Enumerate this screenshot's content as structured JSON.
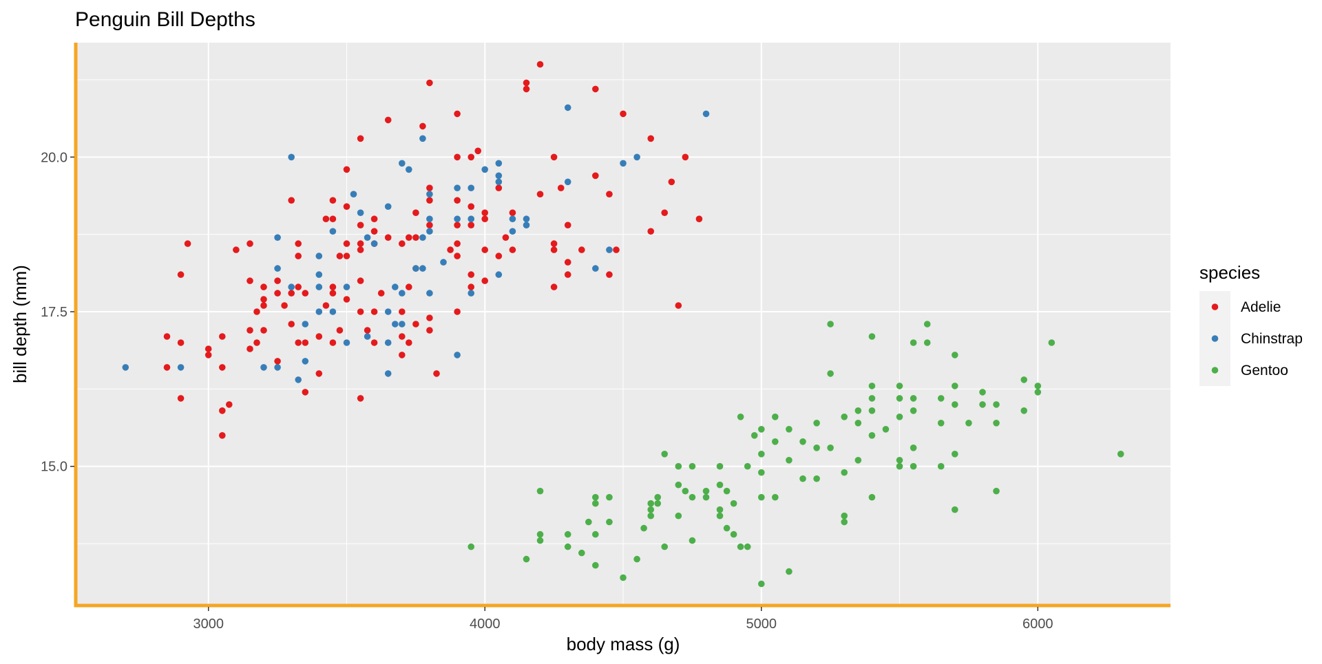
{
  "chart_data": {
    "type": "scatter",
    "title": "Penguin Bill Depths",
    "xlabel": "body mass (g)",
    "ylabel": "bill depth (mm)",
    "xlim": [
      2520,
      6480
    ],
    "ylim": [
      12.75,
      21.85
    ],
    "xticks": [
      3000,
      4000,
      5000,
      6000
    ],
    "xtick_labels": [
      "3000",
      "4000",
      "5000",
      "6000"
    ],
    "yticks": [
      15.0,
      17.5,
      20.0
    ],
    "ytick_labels": [
      "15.0",
      "17.5",
      "20.0"
    ],
    "grid": true,
    "panel_background": "#EBEBEB",
    "grid_color": "#FFFFFF",
    "axis_line_color": "#F5A623",
    "legend": {
      "title": "species",
      "position": "right"
    },
    "series": [
      {
        "name": "Adelie",
        "color": "#E41A1C",
        "points": [
          [
            2850,
            17.1
          ],
          [
            2850,
            16.6
          ],
          [
            2900,
            18.1
          ],
          [
            2900,
            17.0
          ],
          [
            2900,
            16.1
          ],
          [
            2925,
            18.6
          ],
          [
            3000,
            16.9
          ],
          [
            3000,
            16.8
          ],
          [
            3050,
            17.1
          ],
          [
            3050,
            16.6
          ],
          [
            3050,
            15.9
          ],
          [
            3050,
            15.5
          ],
          [
            3075,
            16.0
          ],
          [
            3100,
            18.5
          ],
          [
            3150,
            18.6
          ],
          [
            3150,
            18.0
          ],
          [
            3150,
            17.2
          ],
          [
            3150,
            16.9
          ],
          [
            3175,
            17.5
          ],
          [
            3175,
            17.0
          ],
          [
            3200,
            17.9
          ],
          [
            3200,
            17.7
          ],
          [
            3200,
            17.6
          ],
          [
            3200,
            17.2
          ],
          [
            3250,
            18.0
          ],
          [
            3250,
            17.8
          ],
          [
            3250,
            16.7
          ],
          [
            3275,
            17.6
          ],
          [
            3300,
            19.3
          ],
          [
            3300,
            17.8
          ],
          [
            3300,
            17.3
          ],
          [
            3325,
            18.6
          ],
          [
            3325,
            18.4
          ],
          [
            3325,
            17.9
          ],
          [
            3325,
            17.0
          ],
          [
            3350,
            17.8
          ],
          [
            3350,
            17.0
          ],
          [
            3350,
            16.2
          ],
          [
            3400,
            17.1
          ],
          [
            3400,
            16.5
          ],
          [
            3425,
            19.0
          ],
          [
            3425,
            17.6
          ],
          [
            3450,
            19.3
          ],
          [
            3450,
            19.0
          ],
          [
            3450,
            17.9
          ],
          [
            3450,
            17.8
          ],
          [
            3450,
            17.0
          ],
          [
            3475,
            18.4
          ],
          [
            3475,
            17.2
          ],
          [
            3500,
            19.8
          ],
          [
            3500,
            19.2
          ],
          [
            3500,
            18.6
          ],
          [
            3500,
            18.4
          ],
          [
            3500,
            17.7
          ],
          [
            3550,
            20.3
          ],
          [
            3550,
            18.9
          ],
          [
            3550,
            18.6
          ],
          [
            3550,
            18.5
          ],
          [
            3550,
            18.0
          ],
          [
            3550,
            17.5
          ],
          [
            3550,
            16.1
          ],
          [
            3575,
            17.2
          ],
          [
            3600,
            19.0
          ],
          [
            3600,
            18.8
          ],
          [
            3600,
            18.6
          ],
          [
            3600,
            17.5
          ],
          [
            3600,
            17.0
          ],
          [
            3625,
            17.8
          ],
          [
            3650,
            20.6
          ],
          [
            3650,
            18.7
          ],
          [
            3700,
            18.6
          ],
          [
            3700,
            17.5
          ],
          [
            3700,
            17.1
          ],
          [
            3700,
            16.8
          ],
          [
            3725,
            18.7
          ],
          [
            3725,
            17.9
          ],
          [
            3725,
            17.0
          ],
          [
            3750,
            19.1
          ],
          [
            3750,
            18.7
          ],
          [
            3750,
            18.2
          ],
          [
            3750,
            17.3
          ],
          [
            3775,
            20.5
          ],
          [
            3800,
            21.2
          ],
          [
            3800,
            19.5
          ],
          [
            3800,
            19.3
          ],
          [
            3800,
            18.9
          ],
          [
            3800,
            17.4
          ],
          [
            3800,
            17.2
          ],
          [
            3825,
            16.5
          ],
          [
            3875,
            18.5
          ],
          [
            3900,
            20.7
          ],
          [
            3900,
            20.0
          ],
          [
            3900,
            19.3
          ],
          [
            3900,
            18.9
          ],
          [
            3900,
            18.6
          ],
          [
            3900,
            18.4
          ],
          [
            3900,
            17.5
          ],
          [
            3950,
            20.0
          ],
          [
            3950,
            19.2
          ],
          [
            3950,
            18.9
          ],
          [
            3950,
            18.1
          ],
          [
            3950,
            17.9
          ],
          [
            3975,
            20.1
          ],
          [
            4000,
            19.1
          ],
          [
            4000,
            19.0
          ],
          [
            4000,
            18.5
          ],
          [
            4000,
            18.0
          ],
          [
            4050,
            19.5
          ],
          [
            4050,
            18.4
          ],
          [
            4075,
            18.7
          ],
          [
            4100,
            19.1
          ],
          [
            4100,
            18.5
          ],
          [
            4150,
            21.2
          ],
          [
            4150,
            21.1
          ],
          [
            4200,
            21.5
          ],
          [
            4200,
            19.4
          ],
          [
            4250,
            20.0
          ],
          [
            4250,
            18.6
          ],
          [
            4250,
            18.5
          ],
          [
            4250,
            17.9
          ],
          [
            4275,
            19.5
          ],
          [
            4300,
            18.9
          ],
          [
            4300,
            18.3
          ],
          [
            4300,
            18.1
          ],
          [
            4350,
            18.5
          ],
          [
            4400,
            21.1
          ],
          [
            4400,
            19.7
          ],
          [
            4450,
            19.4
          ],
          [
            4450,
            18.1
          ],
          [
            4475,
            18.5
          ],
          [
            4500,
            20.7
          ],
          [
            4600,
            20.3
          ],
          [
            4600,
            18.8
          ],
          [
            4650,
            19.1
          ],
          [
            4675,
            19.6
          ],
          [
            4700,
            17.6
          ],
          [
            4725,
            20.0
          ],
          [
            4775,
            19.0
          ]
        ]
      },
      {
        "name": "Chinstrap",
        "color": "#377EB8",
        "points": [
          [
            2700,
            16.6
          ],
          [
            2900,
            16.6
          ],
          [
            3200,
            16.6
          ],
          [
            3250,
            18.7
          ],
          [
            3250,
            18.2
          ],
          [
            3250,
            16.6
          ],
          [
            3300,
            20.0
          ],
          [
            3300,
            17.9
          ],
          [
            3325,
            16.4
          ],
          [
            3350,
            17.3
          ],
          [
            3350,
            16.7
          ],
          [
            3400,
            18.4
          ],
          [
            3400,
            18.1
          ],
          [
            3400,
            17.9
          ],
          [
            3400,
            17.5
          ],
          [
            3450,
            18.8
          ],
          [
            3450,
            17.5
          ],
          [
            3500,
            17.9
          ],
          [
            3500,
            17.0
          ],
          [
            3525,
            19.4
          ],
          [
            3550,
            19.1
          ],
          [
            3575,
            18.7
          ],
          [
            3575,
            17.1
          ],
          [
            3600,
            18.6
          ],
          [
            3650,
            19.2
          ],
          [
            3650,
            17.0
          ],
          [
            3650,
            16.5
          ],
          [
            3650,
            17.5
          ],
          [
            3675,
            17.9
          ],
          [
            3700,
            19.9
          ],
          [
            3700,
            17.8
          ],
          [
            3700,
            17.3
          ],
          [
            3675,
            17.3
          ],
          [
            3725,
            19.8
          ],
          [
            3750,
            18.2
          ],
          [
            3775,
            20.3
          ],
          [
            3775,
            18.7
          ],
          [
            3775,
            18.2
          ],
          [
            3800,
            19.4
          ],
          [
            3800,
            19.0
          ],
          [
            3800,
            18.8
          ],
          [
            3800,
            17.8
          ],
          [
            3850,
            18.3
          ],
          [
            3900,
            19.5
          ],
          [
            3900,
            19.0
          ],
          [
            3900,
            16.8
          ],
          [
            3950,
            19.5
          ],
          [
            3950,
            19.0
          ],
          [
            3950,
            17.8
          ],
          [
            4000,
            19.8
          ],
          [
            4050,
            19.9
          ],
          [
            4050,
            19.7
          ],
          [
            4050,
            19.6
          ],
          [
            4050,
            18.1
          ],
          [
            4100,
            19.0
          ],
          [
            4100,
            18.8
          ],
          [
            4150,
            19.0
          ],
          [
            4150,
            18.9
          ],
          [
            4300,
            20.8
          ],
          [
            4300,
            19.6
          ],
          [
            4400,
            18.2
          ],
          [
            4450,
            18.5
          ],
          [
            4500,
            19.9
          ],
          [
            4550,
            20.0
          ],
          [
            4800,
            20.7
          ]
        ]
      },
      {
        "name": "Gentoo",
        "color": "#4DAF4A",
        "points": [
          [
            3950,
            13.7
          ],
          [
            4150,
            13.5
          ],
          [
            4200,
            14.6
          ],
          [
            4200,
            13.9
          ],
          [
            4200,
            13.8
          ],
          [
            4300,
            13.9
          ],
          [
            4300,
            13.7
          ],
          [
            4350,
            13.6
          ],
          [
            4375,
            14.1
          ],
          [
            4400,
            14.5
          ],
          [
            4400,
            14.4
          ],
          [
            4400,
            13.9
          ],
          [
            4400,
            13.4
          ],
          [
            4450,
            14.5
          ],
          [
            4450,
            14.1
          ],
          [
            4500,
            13.2
          ],
          [
            4550,
            13.5
          ],
          [
            4575,
            14.0
          ],
          [
            4600,
            14.4
          ],
          [
            4600,
            14.3
          ],
          [
            4600,
            14.2
          ],
          [
            4625,
            14.4
          ],
          [
            4625,
            14.5
          ],
          [
            4650,
            13.7
          ],
          [
            4650,
            15.2
          ],
          [
            4700,
            15.0
          ],
          [
            4700,
            14.7
          ],
          [
            4700,
            14.2
          ],
          [
            4725,
            14.6
          ],
          [
            4750,
            15.0
          ],
          [
            4750,
            14.5
          ],
          [
            4750,
            13.8
          ],
          [
            4800,
            14.5
          ],
          [
            4800,
            14.6
          ],
          [
            4850,
            15.0
          ],
          [
            4850,
            14.7
          ],
          [
            4850,
            14.3
          ],
          [
            4850,
            14.2
          ],
          [
            4875,
            14.0
          ],
          [
            4875,
            14.6
          ],
          [
            4900,
            14.4
          ],
          [
            4900,
            13.9
          ],
          [
            4925,
            15.8
          ],
          [
            4925,
            13.7
          ],
          [
            4950,
            15.0
          ],
          [
            4950,
            13.7
          ],
          [
            4975,
            15.5
          ],
          [
            5000,
            15.6
          ],
          [
            5000,
            15.2
          ],
          [
            5000,
            14.9
          ],
          [
            5000,
            14.5
          ],
          [
            5000,
            13.1
          ],
          [
            5050,
            15.8
          ],
          [
            5050,
            15.4
          ],
          [
            5050,
            14.5
          ],
          [
            5100,
            15.6
          ],
          [
            5100,
            15.1
          ],
          [
            5100,
            13.3
          ],
          [
            5150,
            15.4
          ],
          [
            5150,
            14.8
          ],
          [
            5200,
            15.7
          ],
          [
            5200,
            15.3
          ],
          [
            5200,
            14.8
          ],
          [
            5250,
            17.3
          ],
          [
            5250,
            16.5
          ],
          [
            5250,
            15.3
          ],
          [
            5300,
            15.8
          ],
          [
            5300,
            14.9
          ],
          [
            5300,
            14.2
          ],
          [
            5300,
            14.1
          ],
          [
            5350,
            15.9
          ],
          [
            5350,
            15.7
          ],
          [
            5350,
            15.1
          ],
          [
            5400,
            17.1
          ],
          [
            5400,
            16.3
          ],
          [
            5400,
            16.1
          ],
          [
            5400,
            15.9
          ],
          [
            5400,
            15.5
          ],
          [
            5400,
            14.5
          ],
          [
            5450,
            15.6
          ],
          [
            5500,
            16.3
          ],
          [
            5500,
            16.1
          ],
          [
            5500,
            15.8
          ],
          [
            5500,
            15.1
          ],
          [
            5500,
            15.0
          ],
          [
            5550,
            17.0
          ],
          [
            5550,
            16.1
          ],
          [
            5550,
            15.9
          ],
          [
            5550,
            15.3
          ],
          [
            5550,
            15.0
          ],
          [
            5600,
            17.3
          ],
          [
            5600,
            17.0
          ],
          [
            5650,
            16.1
          ],
          [
            5650,
            15.7
          ],
          [
            5650,
            15.0
          ],
          [
            5700,
            16.8
          ],
          [
            5700,
            16.3
          ],
          [
            5700,
            16.0
          ],
          [
            5700,
            15.2
          ],
          [
            5700,
            14.3
          ],
          [
            5750,
            15.7
          ],
          [
            5800,
            16.2
          ],
          [
            5800,
            16.0
          ],
          [
            5850,
            16.0
          ],
          [
            5850,
            15.7
          ],
          [
            5850,
            14.6
          ],
          [
            5950,
            16.4
          ],
          [
            5950,
            15.9
          ],
          [
            6000,
            16.3
          ],
          [
            6000,
            16.2
          ],
          [
            6050,
            17.0
          ],
          [
            6300,
            15.2
          ]
        ]
      }
    ]
  }
}
